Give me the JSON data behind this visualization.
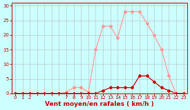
{
  "hours_all": [
    0,
    1,
    2,
    3,
    4,
    5,
    6,
    7,
    8,
    9,
    10,
    11,
    12,
    13,
    14,
    15,
    16,
    17,
    18,
    19,
    20,
    21,
    22,
    23
  ],
  "rafales": [
    0,
    0,
    0,
    0,
    0,
    0,
    0,
    0.5,
    2,
    2,
    0.5,
    15,
    23,
    23,
    19,
    28,
    28,
    28,
    24,
    20,
    15,
    6,
    0,
    0
  ],
  "moyen": [
    0,
    0,
    0,
    0,
    0,
    0,
    0,
    0,
    0,
    0,
    0,
    0,
    1,
    2,
    2,
    2,
    2,
    6,
    6,
    4,
    2,
    1,
    0,
    0
  ],
  "rafales_color": "#ff9999",
  "moyen_color": "#cc0000",
  "bg_color": "#ccffff",
  "grid_color": "#bbbbbb",
  "axis_color": "#cc0000",
  "tick_color": "#cc0000",
  "xlabel": "Vent moyen/en rafales ( km/h )",
  "xlim": [
    -0.5,
    23.5
  ],
  "ylim": [
    0,
    31
  ],
  "yticks": [
    0,
    5,
    10,
    15,
    20,
    25,
    30
  ],
  "xtick_labels": [
    "0",
    "1",
    "2",
    "",
    "",
    "",
    "",
    "7",
    "8",
    "9",
    "10",
    "11",
    "12",
    "13",
    "14",
    "15",
    "16",
    "17",
    "18",
    "19",
    "20",
    "21",
    "22",
    "23"
  ],
  "marker_size_rafales": 2.5,
  "marker_size_moyen": 2.5,
  "linewidth": 0.9,
  "label_fontsize": 6.5,
  "tick_fontsize": 5.0
}
